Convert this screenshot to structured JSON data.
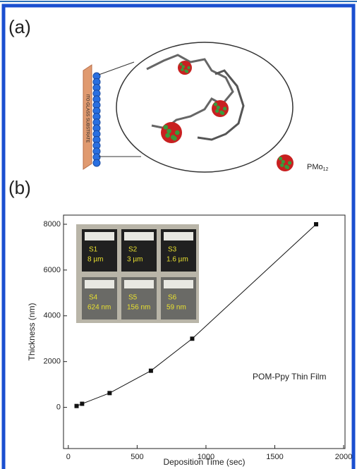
{
  "panel_a": {
    "label": "(a)",
    "substrate_label": "ITO GLASS SUBSTRATE",
    "legend_label": "PMo",
    "legend_subscript": "12"
  },
  "panel_b_label": "(b)",
  "chart_data": {
    "type": "line",
    "x_label": "Deposition Time (sec)",
    "y_label": "Thickness (nm)",
    "annotation": "POM-Ppy Thin Film",
    "series": [
      {
        "x": [
          60,
          100,
          300,
          600,
          900,
          1800
        ],
        "values": [
          59,
          156,
          624,
          1600,
          3000,
          8000
        ],
        "color": "#111"
      }
    ],
    "xlim": [
      -35,
      2010
    ],
    "ylim": [
      -1800,
      8400
    ],
    "xticks": [
      0,
      500,
      1000,
      1500,
      2000
    ],
    "yticks": [
      0,
      2000,
      4000,
      6000,
      8000
    ],
    "inset_samples": [
      {
        "name": "S1",
        "label": "8 µm"
      },
      {
        "name": "S2",
        "label": "3 µm"
      },
      {
        "name": "S3",
        "label": "1.6 µm"
      },
      {
        "name": "S4",
        "label": "624 nm"
      },
      {
        "name": "S5",
        "label": "156 nm"
      },
      {
        "name": "S6",
        "label": "59 nm"
      }
    ]
  }
}
